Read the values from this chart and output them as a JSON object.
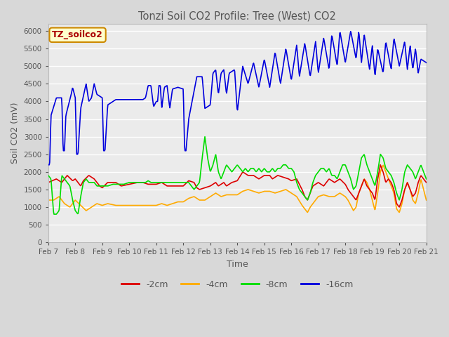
{
  "title": "Tonzi Soil CO2 Profile: Tree (West) CO2",
  "xlabel": "Time",
  "ylabel": "Soil CO2 (mV)",
  "ylim": [
    0,
    6200
  ],
  "yticks": [
    0,
    500,
    1000,
    1500,
    2000,
    2500,
    3000,
    3500,
    4000,
    4500,
    5000,
    5500,
    6000
  ],
  "legend_label": "TZ_soilco2",
  "line_colors": {
    "-2cm": "#dd0000",
    "-4cm": "#ffaa00",
    "-8cm": "#00dd00",
    "-16cm": "#0000dd"
  },
  "xtick_labels": [
    "Feb 7",
    "Feb 8",
    "Feb 9",
    "Feb 10",
    "Feb 11",
    "Feb 12",
    "Feb 13",
    "Feb 14",
    "Feb 15",
    "Feb 16",
    "Feb 17",
    "Feb 18",
    "Feb 19",
    "Feb 20",
    "Feb 21"
  ],
  "num_days": 14,
  "figsize": [
    6.4,
    4.8
  ],
  "dpi": 100
}
